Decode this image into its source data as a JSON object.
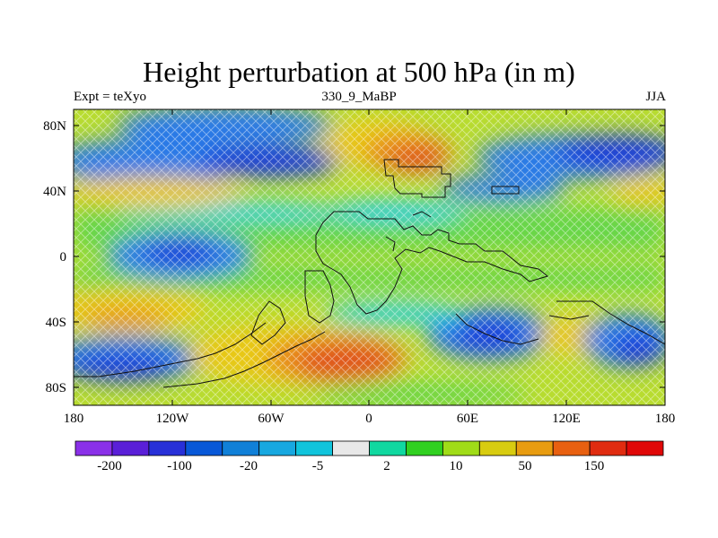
{
  "title": "Height perturbation at 500 hPa (in m)",
  "left_string": "Expt = teXyo",
  "center_string": "330_9_MaBP",
  "right_string": "JJA",
  "axes": {
    "y_ticks": [
      "80N",
      "40N",
      "0",
      "40S",
      "80S"
    ],
    "x_ticks": [
      "180",
      "120W",
      "60W",
      "0",
      "60E",
      "120E",
      "180"
    ]
  },
  "colorbar": {
    "colors": [
      "#8a30e8",
      "#5a1fd8",
      "#2830d8",
      "#0858d8",
      "#1080d8",
      "#18a8e0",
      "#10c4dc",
      "#e8e8e8",
      "#10d8a0",
      "#30d020",
      "#a0dc18",
      "#d8cc10",
      "#e89c10",
      "#e86010",
      "#e02c10",
      "#e00808"
    ],
    "labels": [
      "-200",
      "-100",
      "-20",
      "-5",
      "2",
      "10",
      "50",
      "150"
    ]
  },
  "field_colors": {
    "deep_blue": "#1a3ed8",
    "blue": "#2c7ae6",
    "cyan": "#2ad0e0",
    "green": "#68d64a",
    "yellow_green": "#b8dc30",
    "yellow": "#e8c818",
    "orange": "#e88c1c",
    "red_orange": "#e0501a"
  }
}
